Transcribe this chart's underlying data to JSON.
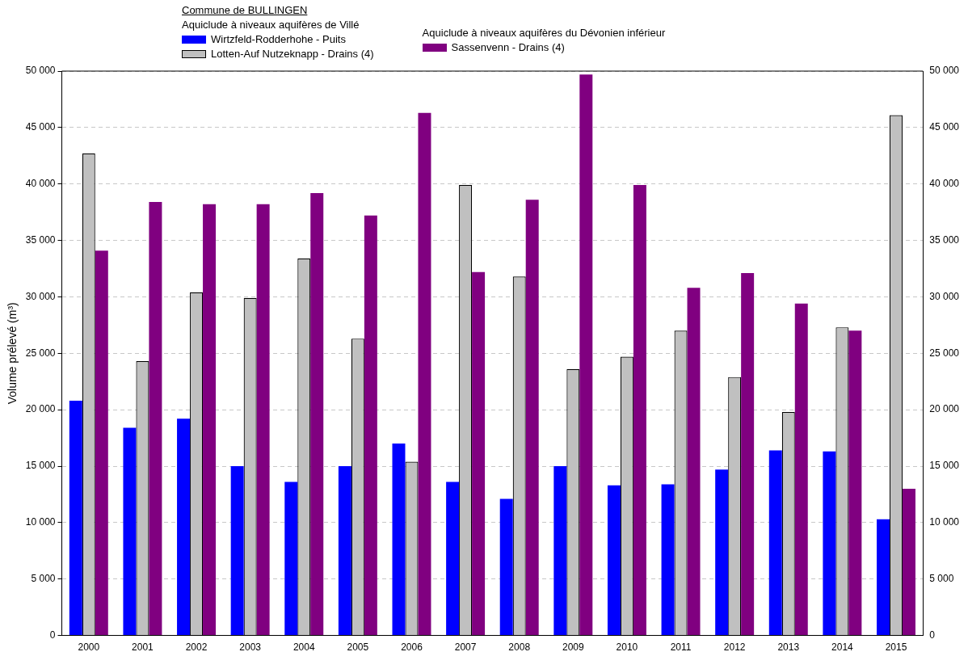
{
  "chart_data": {
    "type": "bar",
    "legend_title": "Commune de BULLINGEN",
    "annotations": [
      "Aquiclude à niveaux aquifères de Villé",
      "Aquiclude à niveaux aquifères du Dévonien inférieur"
    ],
    "ylabel": "Volume prélevé (m³)",
    "categories": [
      "2000",
      "2001",
      "2002",
      "2003",
      "2004",
      "2005",
      "2006",
      "2007",
      "2008",
      "2009",
      "2010",
      "2011",
      "2012",
      "2013",
      "2014",
      "2015"
    ],
    "series": [
      {
        "name": "Wirtzfeld-Rodderhohe - Puits",
        "color": "#0000ff",
        "values": [
          20800,
          18400,
          19200,
          15000,
          13600,
          15000,
          17000,
          13600,
          12100,
          15000,
          13300,
          13400,
          14700,
          16400,
          16300,
          10300
        ]
      },
      {
        "name": "Lotten-Auf Nutzeknapp - Drains  (4)",
        "color": "#c0c0c0",
        "values": [
          42700,
          24300,
          30400,
          29900,
          33400,
          26300,
          15400,
          39900,
          31800,
          23600,
          24700,
          27000,
          22900,
          19800,
          27300,
          46100
        ]
      },
      {
        "name": "Sassenvenn - Drains (4)",
        "color": "#800080",
        "values": [
          34100,
          38400,
          38200,
          38200,
          39200,
          37200,
          46300,
          32200,
          38600,
          49700,
          39900,
          30800,
          32100,
          29400,
          27000,
          13000
        ]
      }
    ],
    "ylim": [
      0,
      50000
    ],
    "yticks": [
      0,
      {
        "value": 5000,
        "label": "5 000"
      },
      {
        "value": 10000,
        "label": "10 000"
      },
      {
        "value": 15000,
        "label": "15 000"
      },
      {
        "value": 20000,
        "label": "20 000"
      },
      {
        "value": 25000,
        "label": "25 000"
      },
      {
        "value": 30000,
        "label": "30 000"
      },
      {
        "value": 35000,
        "label": "35 000"
      },
      {
        "value": 40000,
        "label": "40 000"
      },
      {
        "value": 45000,
        "label": "45 000"
      },
      {
        "value": 50000,
        "label": "50 000"
      }
    ],
    "y2lim": [
      0,
      50000
    ],
    "y2ticks": [
      0,
      {
        "value": 5000,
        "label": "5 000"
      },
      {
        "value": 10000,
        "label": "10 000"
      },
      {
        "value": 15000,
        "label": "15 000"
      },
      {
        "value": 20000,
        "label": "20 000"
      },
      {
        "value": 25000,
        "label": "25 000"
      },
      {
        "value": 30000,
        "label": "30 000"
      },
      {
        "value": 35000,
        "label": "35 000"
      },
      {
        "value": 40000,
        "label": "40 000"
      },
      {
        "value": 45000,
        "label": "45 000"
      },
      {
        "value": 50000,
        "label": "50 000"
      }
    ],
    "grid": "y",
    "legend": "top"
  }
}
